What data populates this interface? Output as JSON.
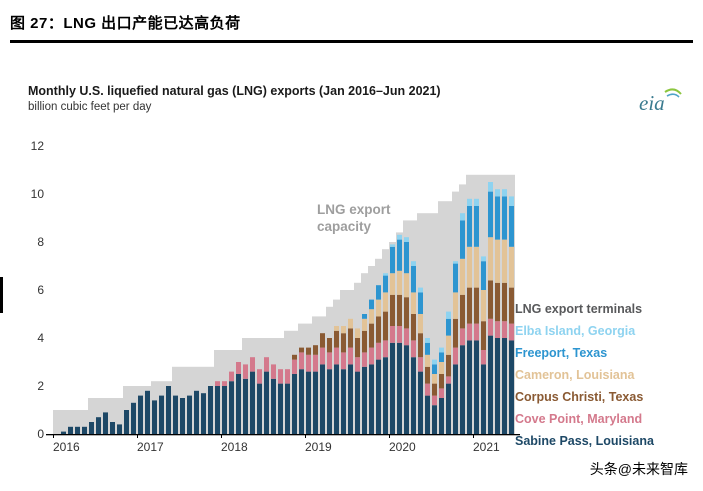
{
  "figure": {
    "caption": "图 27：LNG 出口产能已达高负荷"
  },
  "watermark": {
    "text": "头条@未来智库"
  },
  "chart": {
    "title": "Monthly U.S. liquefied natural gas (LNG) exports (Jan 2016–Jun 2021)",
    "subtitle": "billion cubic feet per day",
    "logo": "eia"
  },
  "chart_data": {
    "type": "bar",
    "stacked": true,
    "title": "Monthly U.S. liquefied natural gas (LNG) exports (Jan 2016–Jun 2021)",
    "ylabel": "billion cubic feet per day",
    "x_unit": "month",
    "x_range": [
      "2016-01",
      "2021-06"
    ],
    "n_months": 66,
    "year_labels": [
      "2016",
      "2017",
      "2018",
      "2019",
      "2020",
      "2021"
    ],
    "ylim": [
      0,
      12
    ],
    "yticks": [
      0,
      2,
      4,
      6,
      8,
      10,
      12
    ],
    "grid": false,
    "legend_position": "right",
    "legend_title": "LNG export terminals",
    "capacity_series": {
      "name": "LNG export capacity",
      "color": "#d5d5d5",
      "label_lines": [
        "LNG export",
        "capacity"
      ],
      "values": [
        1.0,
        1.0,
        1.0,
        1.0,
        1.0,
        1.5,
        1.5,
        1.5,
        1.5,
        1.5,
        2.0,
        2.0,
        2.0,
        2.0,
        2.2,
        2.2,
        2.2,
        2.8,
        2.8,
        2.8,
        2.8,
        2.8,
        2.8,
        3.5,
        3.5,
        3.5,
        3.5,
        4.0,
        4.0,
        4.0,
        4.0,
        4.0,
        4.0,
        4.3,
        4.3,
        4.6,
        4.6,
        4.9,
        4.9,
        5.3,
        5.6,
        6.0,
        6.0,
        6.3,
        6.7,
        7.0,
        7.3,
        7.7,
        8.0,
        8.4,
        8.9,
        8.9,
        9.2,
        9.2,
        9.2,
        9.7,
        9.7,
        10.1,
        10.4,
        10.8,
        10.8,
        10.8,
        10.8,
        10.8,
        10.8,
        10.8
      ]
    },
    "series": [
      {
        "name": "Sabine Pass, Louisiana",
        "color": "#1d4866",
        "values": [
          0.0,
          0.1,
          0.3,
          0.3,
          0.3,
          0.5,
          0.7,
          0.9,
          0.5,
          0.4,
          1.0,
          1.3,
          1.6,
          1.8,
          1.4,
          1.6,
          2.0,
          1.6,
          1.5,
          1.6,
          1.8,
          1.7,
          2.0,
          2.0,
          2.0,
          2.2,
          2.5,
          2.3,
          2.6,
          2.1,
          2.6,
          2.3,
          2.1,
          2.1,
          2.5,
          2.7,
          2.6,
          2.6,
          2.9,
          2.7,
          2.9,
          2.7,
          2.9,
          2.6,
          2.8,
          2.9,
          3.1,
          3.2,
          3.8,
          3.8,
          3.7,
          3.2,
          2.6,
          1.6,
          1.2,
          1.5,
          2.1,
          2.9,
          3.7,
          3.9,
          3.9,
          2.9,
          4.1,
          4.0,
          4.0,
          3.9
        ]
      },
      {
        "name": "Cove Point, Maryland",
        "color": "#d4798c",
        "values": [
          0,
          0,
          0,
          0,
          0,
          0,
          0,
          0,
          0,
          0,
          0,
          0,
          0,
          0,
          0,
          0,
          0,
          0,
          0,
          0,
          0,
          0,
          0,
          0.2,
          0.2,
          0.4,
          0.5,
          0.6,
          0.6,
          0.6,
          0.6,
          0.6,
          0.6,
          0.6,
          0.6,
          0.7,
          0.7,
          0.7,
          0.7,
          0.7,
          0.7,
          0.7,
          0.7,
          0.6,
          0.6,
          0.7,
          0.7,
          0.7,
          0.7,
          0.7,
          0.7,
          0.7,
          0.6,
          0.5,
          0.4,
          0.4,
          0.3,
          0.7,
          0.7,
          0.7,
          0.7,
          0.6,
          0.7,
          0.7,
          0.7,
          0.7
        ]
      },
      {
        "name": "Corpus Christi, Texas",
        "color": "#8a5a33",
        "values": [
          0,
          0,
          0,
          0,
          0,
          0,
          0,
          0,
          0,
          0,
          0,
          0,
          0,
          0,
          0,
          0,
          0,
          0,
          0,
          0,
          0,
          0,
          0,
          0,
          0,
          0,
          0,
          0,
          0,
          0,
          0,
          0,
          0,
          0,
          0.2,
          0.2,
          0.3,
          0.4,
          0.6,
          0.6,
          0.7,
          0.8,
          0.8,
          0.8,
          0.9,
          1.0,
          1.1,
          1.2,
          1.3,
          1.3,
          1.3,
          1.1,
          1.0,
          0.7,
          0.5,
          0.6,
          0.9,
          1.2,
          1.4,
          1.5,
          1.5,
          1.2,
          1.6,
          1.6,
          1.6,
          1.5
        ]
      },
      {
        "name": "Cameron, Louisiana",
        "color": "#e2c397",
        "values": [
          0,
          0,
          0,
          0,
          0,
          0,
          0,
          0,
          0,
          0,
          0,
          0,
          0,
          0,
          0,
          0,
          0,
          0,
          0,
          0,
          0,
          0,
          0,
          0,
          0,
          0,
          0,
          0,
          0,
          0,
          0,
          0,
          0,
          0,
          0,
          0,
          0,
          0,
          0,
          0,
          0.2,
          0.3,
          0.4,
          0.4,
          0.5,
          0.6,
          0.7,
          0.8,
          0.9,
          1.0,
          1.0,
          0.9,
          0.8,
          0.5,
          0.4,
          0.5,
          0.8,
          1.1,
          1.5,
          1.7,
          1.7,
          1.3,
          1.8,
          1.8,
          1.8,
          1.7
        ]
      },
      {
        "name": "Freeport, Texas",
        "color": "#2d95d0",
        "values": [
          0,
          0,
          0,
          0,
          0,
          0,
          0,
          0,
          0,
          0,
          0,
          0,
          0,
          0,
          0,
          0,
          0,
          0,
          0,
          0,
          0,
          0,
          0,
          0,
          0,
          0,
          0,
          0,
          0,
          0,
          0,
          0,
          0,
          0,
          0,
          0,
          0,
          0,
          0,
          0,
          0,
          0,
          0,
          0,
          0.2,
          0.4,
          0.6,
          0.7,
          1.1,
          1.3,
          1.3,
          1.1,
          0.9,
          0.5,
          0.4,
          0.4,
          0.7,
          1.2,
          1.6,
          1.7,
          1.7,
          1.2,
          1.9,
          1.8,
          1.8,
          1.7
        ]
      },
      {
        "name": "Elba Island, Georgia",
        "color": "#8ed3f0",
        "values": [
          0,
          0,
          0,
          0,
          0,
          0,
          0,
          0,
          0,
          0,
          0,
          0,
          0,
          0,
          0,
          0,
          0,
          0,
          0,
          0,
          0,
          0,
          0,
          0,
          0,
          0,
          0,
          0,
          0,
          0,
          0,
          0,
          0,
          0,
          0,
          0,
          0,
          0,
          0,
          0,
          0,
          0,
          0,
          0,
          0,
          0,
          0,
          0.1,
          0.1,
          0.2,
          0.2,
          0.2,
          0.2,
          0.2,
          0.2,
          0.2,
          0.3,
          0.1,
          0.3,
          0.3,
          0.3,
          0.2,
          0.4,
          0.3,
          0.3,
          0.4
        ]
      }
    ]
  }
}
